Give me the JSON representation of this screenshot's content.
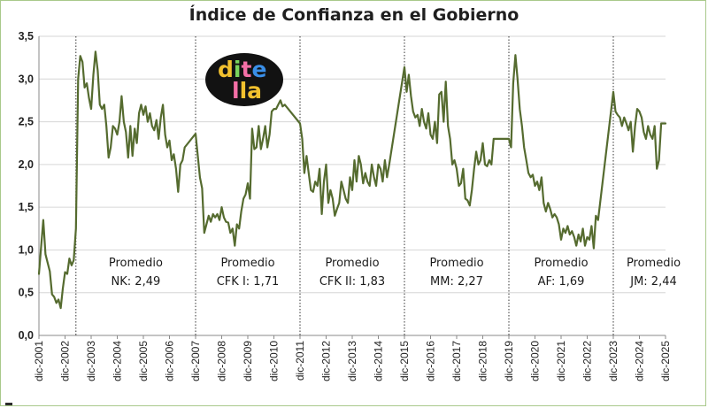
{
  "logo": {
    "text": "di te lla"
  },
  "chart_data": {
    "type": "line",
    "title": "Índice de Confianza en el Gobierno",
    "ylim": [
      0,
      3.5
    ],
    "y_ticks": [
      "0,0",
      "0,5",
      "1,0",
      "1,5",
      "2,0",
      "2,5",
      "3,0",
      "3,5"
    ],
    "x_ticks": [
      "dic-2001",
      "dic-2002",
      "dic-2003",
      "dic-2004",
      "dic-2005",
      "dic-2006",
      "dic-2007",
      "dic-2008",
      "dic-2009",
      "dic-2010",
      "dic-2011",
      "dic-2012",
      "dic-2013",
      "dic-2014",
      "dic-2015",
      "dic-2016",
      "dic-2017",
      "dic-2018",
      "dic-2019",
      "dic-2020",
      "dic-2021",
      "dic-2022",
      "dic-2023",
      "dic-2024",
      "dic-2025"
    ],
    "x_range": [
      "2001-12",
      "2025-12"
    ],
    "grid": "horizontal",
    "line_color": "#556b2f",
    "period_boundaries": [
      "2003-05",
      "2007-12",
      "2011-12",
      "2015-12",
      "2019-12",
      "2023-12"
    ],
    "period_annotations": [
      {
        "line1": "Promedio",
        "line2": "NK: 2,49"
      },
      {
        "line1": "Promedio",
        "line2": "CFK I: 1,71"
      },
      {
        "line1": "Promedio",
        "line2": "CFK II: 1,83"
      },
      {
        "line1": "Promedio",
        "line2": "MM: 2,27"
      },
      {
        "line1": "Promedio",
        "line2": "AF: 1,69"
      },
      {
        "line1": "Promedio",
        "line2": "JM: 2,44"
      }
    ],
    "series": [
      {
        "points": [
          [
            "2001-12",
            0.72
          ],
          [
            "2002-02",
            1.35
          ],
          [
            "2002-03",
            0.95
          ],
          [
            "2002-05",
            0.75
          ],
          [
            "2002-06",
            0.48
          ],
          [
            "2002-07",
            0.45
          ],
          [
            "2002-08",
            0.38
          ],
          [
            "2002-09",
            0.42
          ],
          [
            "2002-10",
            0.32
          ],
          [
            "2002-11",
            0.55
          ],
          [
            "2002-12",
            0.74
          ],
          [
            "2003-01",
            0.72
          ],
          [
            "2003-02",
            0.9
          ],
          [
            "2003-03",
            0.82
          ],
          [
            "2003-04",
            0.88
          ],
          [
            "2003-05",
            1.25
          ],
          [
            "2003-06",
            3.0
          ],
          [
            "2003-07",
            3.27
          ],
          [
            "2003-08",
            3.2
          ],
          [
            "2003-09",
            2.9
          ],
          [
            "2003-10",
            2.95
          ],
          [
            "2003-11",
            2.78
          ],
          [
            "2003-12",
            2.65
          ],
          [
            "2004-01",
            3.05
          ],
          [
            "2004-02",
            3.32
          ],
          [
            "2004-03",
            3.1
          ],
          [
            "2004-04",
            2.7
          ],
          [
            "2004-05",
            2.65
          ],
          [
            "2004-06",
            2.7
          ],
          [
            "2004-07",
            2.45
          ],
          [
            "2004-08",
            2.08
          ],
          [
            "2004-09",
            2.2
          ],
          [
            "2004-10",
            2.45
          ],
          [
            "2004-11",
            2.42
          ],
          [
            "2004-12",
            2.35
          ],
          [
            "2005-01",
            2.5
          ],
          [
            "2005-02",
            2.8
          ],
          [
            "2005-03",
            2.5
          ],
          [
            "2005-04",
            2.38
          ],
          [
            "2005-05",
            2.08
          ],
          [
            "2005-06",
            2.45
          ],
          [
            "2005-07",
            2.1
          ],
          [
            "2005-08",
            2.42
          ],
          [
            "2005-09",
            2.25
          ],
          [
            "2005-10",
            2.6
          ],
          [
            "2005-11",
            2.7
          ],
          [
            "2005-12",
            2.58
          ],
          [
            "2006-01",
            2.68
          ],
          [
            "2006-02",
            2.5
          ],
          [
            "2006-03",
            2.6
          ],
          [
            "2006-04",
            2.45
          ],
          [
            "2006-05",
            2.4
          ],
          [
            "2006-06",
            2.52
          ],
          [
            "2006-07",
            2.3
          ],
          [
            "2006-08",
            2.55
          ],
          [
            "2006-09",
            2.7
          ],
          [
            "2006-10",
            2.35
          ],
          [
            "2006-11",
            2.2
          ],
          [
            "2006-12",
            2.28
          ],
          [
            "2007-01",
            2.05
          ],
          [
            "2007-02",
            2.12
          ],
          [
            "2007-03",
            1.95
          ],
          [
            "2007-04",
            1.68
          ],
          [
            "2007-05",
            2.0
          ],
          [
            "2007-06",
            2.05
          ],
          [
            "2007-07",
            2.2
          ],
          [
            "2007-12",
            2.36
          ],
          [
            "2008-02",
            1.85
          ],
          [
            "2008-03",
            1.72
          ],
          [
            "2008-04",
            1.2
          ],
          [
            "2008-05",
            1.3
          ],
          [
            "2008-06",
            1.4
          ],
          [
            "2008-07",
            1.33
          ],
          [
            "2008-08",
            1.42
          ],
          [
            "2008-09",
            1.38
          ],
          [
            "2008-10",
            1.42
          ],
          [
            "2008-11",
            1.35
          ],
          [
            "2008-12",
            1.5
          ],
          [
            "2009-01",
            1.38
          ],
          [
            "2009-02",
            1.33
          ],
          [
            "2009-03",
            1.32
          ],
          [
            "2009-04",
            1.2
          ],
          [
            "2009-05",
            1.25
          ],
          [
            "2009-06",
            1.05
          ],
          [
            "2009-07",
            1.3
          ],
          [
            "2009-08",
            1.25
          ],
          [
            "2009-09",
            1.45
          ],
          [
            "2009-10",
            1.6
          ],
          [
            "2009-11",
            1.65
          ],
          [
            "2009-12",
            1.78
          ],
          [
            "2010-01",
            1.6
          ],
          [
            "2010-02",
            2.42
          ],
          [
            "2010-03",
            2.18
          ],
          [
            "2010-04",
            2.2
          ],
          [
            "2010-05",
            2.45
          ],
          [
            "2010-06",
            2.18
          ],
          [
            "2010-07",
            2.3
          ],
          [
            "2010-08",
            2.45
          ],
          [
            "2010-09",
            2.2
          ],
          [
            "2010-10",
            2.35
          ],
          [
            "2010-11",
            2.62
          ],
          [
            "2010-12",
            2.65
          ],
          [
            "2011-01",
            2.65
          ],
          [
            "2011-02",
            2.7
          ],
          [
            "2011-03",
            2.75
          ],
          [
            "2011-04",
            2.68
          ],
          [
            "2011-05",
            2.7
          ],
          [
            "2011-12",
            2.48
          ],
          [
            "2012-01",
            2.3
          ],
          [
            "2012-02",
            1.9
          ],
          [
            "2012-03",
            2.1
          ],
          [
            "2012-04",
            1.9
          ],
          [
            "2012-05",
            1.7
          ],
          [
            "2012-06",
            1.68
          ],
          [
            "2012-07",
            1.8
          ],
          [
            "2012-08",
            1.75
          ],
          [
            "2012-09",
            1.95
          ],
          [
            "2012-10",
            1.42
          ],
          [
            "2012-11",
            1.8
          ],
          [
            "2012-12",
            2.0
          ],
          [
            "2013-01",
            1.55
          ],
          [
            "2013-02",
            1.7
          ],
          [
            "2013-03",
            1.6
          ],
          [
            "2013-04",
            1.4
          ],
          [
            "2013-05",
            1.48
          ],
          [
            "2013-06",
            1.55
          ],
          [
            "2013-07",
            1.8
          ],
          [
            "2013-08",
            1.7
          ],
          [
            "2013-09",
            1.6
          ],
          [
            "2013-10",
            1.55
          ],
          [
            "2013-11",
            1.85
          ],
          [
            "2013-12",
            1.7
          ],
          [
            "2014-01",
            2.05
          ],
          [
            "2014-02",
            1.8
          ],
          [
            "2014-03",
            2.1
          ],
          [
            "2014-04",
            2.0
          ],
          [
            "2014-05",
            1.78
          ],
          [
            "2014-06",
            1.9
          ],
          [
            "2014-07",
            1.8
          ],
          [
            "2014-08",
            1.75
          ],
          [
            "2014-09",
            2.0
          ],
          [
            "2014-10",
            1.85
          ],
          [
            "2014-11",
            1.75
          ],
          [
            "2014-12",
            2.0
          ],
          [
            "2015-01",
            1.95
          ],
          [
            "2015-02",
            1.8
          ],
          [
            "2015-03",
            2.05
          ],
          [
            "2015-04",
            1.85
          ],
          [
            "2015-05",
            2.0
          ],
          [
            "2015-12",
            3.14
          ],
          [
            "2016-01",
            2.85
          ],
          [
            "2016-02",
            3.05
          ],
          [
            "2016-03",
            2.8
          ],
          [
            "2016-04",
            2.62
          ],
          [
            "2016-05",
            2.55
          ],
          [
            "2016-06",
            2.58
          ],
          [
            "2016-07",
            2.45
          ],
          [
            "2016-08",
            2.65
          ],
          [
            "2016-09",
            2.5
          ],
          [
            "2016-10",
            2.42
          ],
          [
            "2016-11",
            2.6
          ],
          [
            "2016-12",
            2.35
          ],
          [
            "2017-01",
            2.3
          ],
          [
            "2017-02",
            2.5
          ],
          [
            "2017-03",
            2.25
          ],
          [
            "2017-04",
            2.82
          ],
          [
            "2017-05",
            2.85
          ],
          [
            "2017-06",
            2.5
          ],
          [
            "2017-07",
            2.97
          ],
          [
            "2017-08",
            2.45
          ],
          [
            "2017-09",
            2.3
          ],
          [
            "2017-10",
            2.0
          ],
          [
            "2017-11",
            2.05
          ],
          [
            "2017-12",
            1.95
          ],
          [
            "2018-01",
            1.75
          ],
          [
            "2018-02",
            1.78
          ],
          [
            "2018-03",
            1.95
          ],
          [
            "2018-04",
            1.6
          ],
          [
            "2018-05",
            1.58
          ],
          [
            "2018-06",
            1.52
          ],
          [
            "2018-07",
            1.7
          ],
          [
            "2018-08",
            1.95
          ],
          [
            "2018-09",
            2.15
          ],
          [
            "2018-10",
            2.0
          ],
          [
            "2018-11",
            2.05
          ],
          [
            "2018-12",
            2.25
          ],
          [
            "2019-01",
            2.0
          ],
          [
            "2019-02",
            1.98
          ],
          [
            "2019-03",
            2.05
          ],
          [
            "2019-04",
            2.0
          ],
          [
            "2019-05",
            2.3
          ],
          [
            "2019-12",
            2.3
          ],
          [
            "2020-01",
            2.2
          ],
          [
            "2020-02",
            2.95
          ],
          [
            "2020-03",
            3.28
          ],
          [
            "2020-04",
            3.0
          ],
          [
            "2020-05",
            2.65
          ],
          [
            "2020-06",
            2.45
          ],
          [
            "2020-07",
            2.2
          ],
          [
            "2020-08",
            2.05
          ],
          [
            "2020-09",
            1.9
          ],
          [
            "2020-10",
            1.85
          ],
          [
            "2020-11",
            1.88
          ],
          [
            "2020-12",
            1.75
          ],
          [
            "2021-01",
            1.8
          ],
          [
            "2021-02",
            1.7
          ],
          [
            "2021-03",
            1.85
          ],
          [
            "2021-04",
            1.55
          ],
          [
            "2021-05",
            1.45
          ],
          [
            "2021-06",
            1.55
          ],
          [
            "2021-07",
            1.48
          ],
          [
            "2021-08",
            1.38
          ],
          [
            "2021-09",
            1.42
          ],
          [
            "2021-10",
            1.38
          ],
          [
            "2021-11",
            1.3
          ],
          [
            "2021-12",
            1.12
          ],
          [
            "2022-01",
            1.25
          ],
          [
            "2022-02",
            1.2
          ],
          [
            "2022-03",
            1.28
          ],
          [
            "2022-04",
            1.18
          ],
          [
            "2022-05",
            1.22
          ],
          [
            "2022-06",
            1.15
          ],
          [
            "2022-07",
            1.05
          ],
          [
            "2022-08",
            1.18
          ],
          [
            "2022-09",
            1.1
          ],
          [
            "2022-10",
            1.25
          ],
          [
            "2022-11",
            1.05
          ],
          [
            "2022-12",
            1.15
          ],
          [
            "2023-01",
            1.12
          ],
          [
            "2023-02",
            1.28
          ],
          [
            "2023-03",
            1.02
          ],
          [
            "2023-04",
            1.4
          ],
          [
            "2023-05",
            1.35
          ],
          [
            "2023-12",
            2.85
          ],
          [
            "2024-01",
            2.62
          ],
          [
            "2024-02",
            2.58
          ],
          [
            "2024-03",
            2.55
          ],
          [
            "2024-04",
            2.45
          ],
          [
            "2024-05",
            2.55
          ],
          [
            "2024-06",
            2.48
          ],
          [
            "2024-07",
            2.4
          ],
          [
            "2024-08",
            2.5
          ],
          [
            "2024-09",
            2.15
          ],
          [
            "2024-10",
            2.45
          ],
          [
            "2024-11",
            2.65
          ],
          [
            "2024-12",
            2.62
          ],
          [
            "2025-01",
            2.55
          ],
          [
            "2025-02",
            2.38
          ],
          [
            "2025-03",
            2.3
          ],
          [
            "2025-04",
            2.45
          ],
          [
            "2025-05",
            2.35
          ],
          [
            "2025-06",
            2.3
          ],
          [
            "2025-07",
            2.45
          ],
          [
            "2025-08",
            1.95
          ],
          [
            "2025-09",
            2.05
          ],
          [
            "2025-10",
            2.48
          ],
          [
            "2025-11",
            2.48
          ],
          [
            "2025-12",
            2.48
          ]
        ]
      }
    ]
  }
}
